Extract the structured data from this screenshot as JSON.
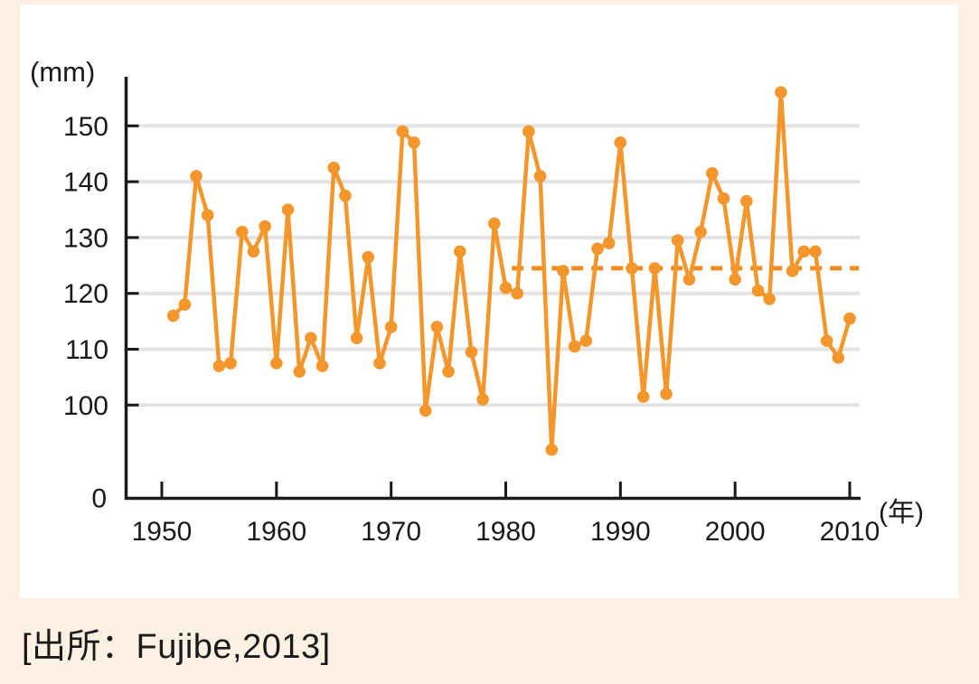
{
  "page": {
    "background_color": "#fcf1e2",
    "panel_color": "#ffffff"
  },
  "caption": {
    "text": "[出所：Fujibe,2013]"
  },
  "chart_data": {
    "type": "line",
    "title": "",
    "ylabel": "(mm)",
    "xlabel": "(年)",
    "years": [
      1951,
      1952,
      1953,
      1954,
      1955,
      1956,
      1957,
      1958,
      1959,
      1960,
      1961,
      1962,
      1963,
      1964,
      1965,
      1966,
      1967,
      1968,
      1969,
      1970,
      1971,
      1972,
      1973,
      1974,
      1975,
      1976,
      1977,
      1978,
      1979,
      1980,
      1981,
      1982,
      1983,
      1984,
      1985,
      1986,
      1987,
      1988,
      1989,
      1990,
      1991,
      1992,
      1993,
      1994,
      1995,
      1996,
      1997,
      1998,
      1999,
      2000,
      2001,
      2002,
      2003,
      2004,
      2005,
      2006,
      2007,
      2008,
      2009,
      2010
    ],
    "values": [
      116,
      118,
      141,
      134,
      107,
      107.5,
      131,
      127.5,
      132,
      107.5,
      135,
      106,
      112,
      107,
      142.5,
      137.5,
      112,
      126.5,
      107.5,
      114,
      149,
      147,
      99,
      114,
      106,
      127.5,
      109.5,
      101,
      132.5,
      121,
      120,
      149,
      141,
      92,
      124,
      110.5,
      111.5,
      128,
      129,
      147,
      124.5,
      101.5,
      124.5,
      102,
      129.5,
      122.5,
      131,
      141.5,
      137,
      122.5,
      136.5,
      120.5,
      119,
      156,
      124,
      127.5,
      127.5,
      111.5,
      108.5,
      115.5
    ],
    "yticks": [
      150,
      140,
      130,
      120,
      110,
      100
    ],
    "y_zero_label": "0",
    "xticks": [
      1950,
      1960,
      1970,
      1980,
      1990,
      2000,
      2010
    ],
    "ylim_display": [
      0,
      157
    ],
    "axis_break_below": 100,
    "grid": true,
    "legend": "none",
    "reference_line": {
      "style": "dashed",
      "value": 124.5,
      "from_year": 1981,
      "to_year": 2010.8
    },
    "colors": {
      "line": "#f3962c",
      "reference": "#f08c24",
      "grid": "#e3e3e3",
      "axis": "#1a1a1a",
      "text": "#1a1a1a"
    }
  }
}
